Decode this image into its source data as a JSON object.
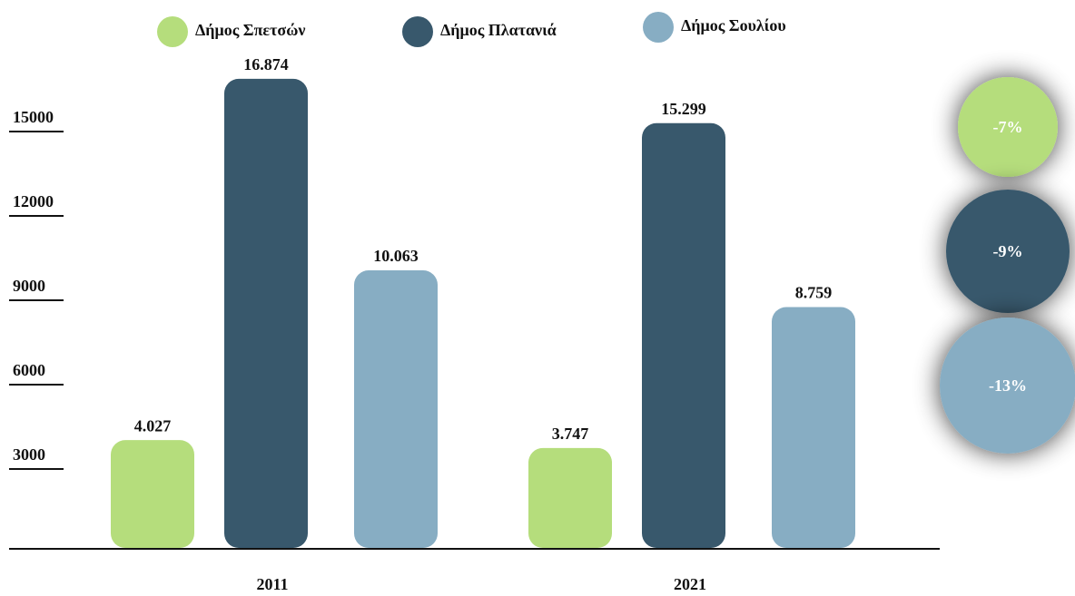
{
  "chart_data": {
    "type": "bar",
    "categories": [
      "2011",
      "2021"
    ],
    "series": [
      {
        "name": "Δήμος Σπετσών",
        "color": "#b5dd7c",
        "values": [
          4027,
          3747
        ],
        "value_labels": [
          "4.027",
          "3.747"
        ]
      },
      {
        "name": "Δήμος Πλατανιά",
        "color": "#38586c",
        "values": [
          16874,
          15299
        ],
        "value_labels": [
          "16.874",
          "15.299"
        ]
      },
      {
        "name": "Δήμος Σουλίου",
        "color": "#87adc3",
        "values": [
          10063,
          8759
        ],
        "value_labels": [
          "10.063",
          "8.759"
        ]
      }
    ],
    "annotations": [
      "-7%",
      "-9%",
      "-13%"
    ],
    "ylim": [
      0,
      18000
    ],
    "yticks": [
      3000,
      6000,
      9000,
      12000,
      15000
    ]
  }
}
